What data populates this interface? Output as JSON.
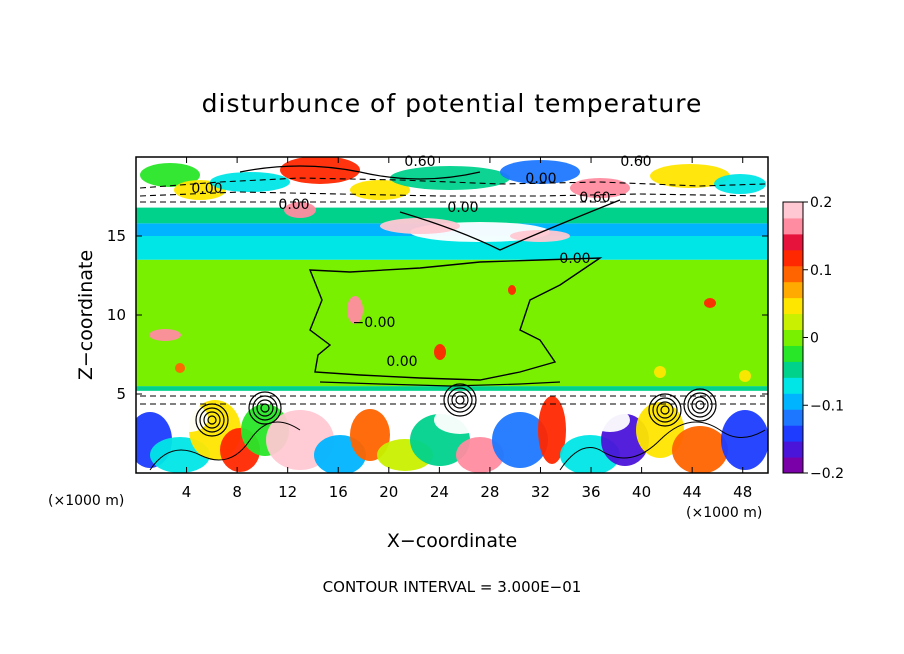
{
  "chart_data": {
    "type": "heatmap",
    "title": "disturbunce of potential temperature",
    "xlabel": "X−coordinate",
    "ylabel": "Z−coordinate",
    "x_unit": "(×1000 m)",
    "y_unit": "(×1000 m)",
    "xlim": [
      0,
      50
    ],
    "ylim": [
      0,
      20
    ],
    "xticks": [
      "4",
      "8",
      "12",
      "16",
      "20",
      "24",
      "28",
      "32",
      "36",
      "40",
      "44",
      "48"
    ],
    "yticks": [
      "5",
      "10",
      "15"
    ],
    "footer": "CONTOUR INTERVAL = 3.000E−01",
    "colorbar": {
      "min": -0.2,
      "max": 0.2,
      "ticks": [
        "0.2",
        "0.1",
        "0",
        "−0.1",
        "−0.2"
      ],
      "colors": [
        "#7a00a8",
        "#4b14d9",
        "#1e3cff",
        "#1e78ff",
        "#00b4ff",
        "#00e6e6",
        "#00d28c",
        "#28e628",
        "#78f000",
        "#c8f000",
        "#ffe600",
        "#ffaa00",
        "#ff6400",
        "#ff2800",
        "#e6143c",
        "#ff8ca0",
        "#ffc8d2"
      ]
    },
    "bands": [
      {
        "z": [
          0,
          5.2
        ],
        "level": "mixed",
        "value": 0.0
      },
      {
        "z": [
          5.2,
          5.5
        ],
        "level": "light blue",
        "value": -0.06
      },
      {
        "z": [
          5.5,
          13.5
        ],
        "level": "green",
        "value": 0.0
      },
      {
        "z": [
          13.5,
          15.0
        ],
        "level": "cyan",
        "value": -0.07
      },
      {
        "z": [
          15.0,
          15.8
        ],
        "level": "blue",
        "value": -0.1
      },
      {
        "z": [
          15.8,
          16.8
        ],
        "level": "cyan",
        "value": -0.06
      },
      {
        "z": [
          16.8,
          20
        ],
        "level": "mixed",
        "value": 0.0
      }
    ],
    "contour_labels": [
      "0.60",
      "0.60",
      "0.00",
      "0.00",
      "0.60",
      "0.00",
      "0.00",
      "0.00",
      "−0.00",
      "0.00"
    ]
  }
}
